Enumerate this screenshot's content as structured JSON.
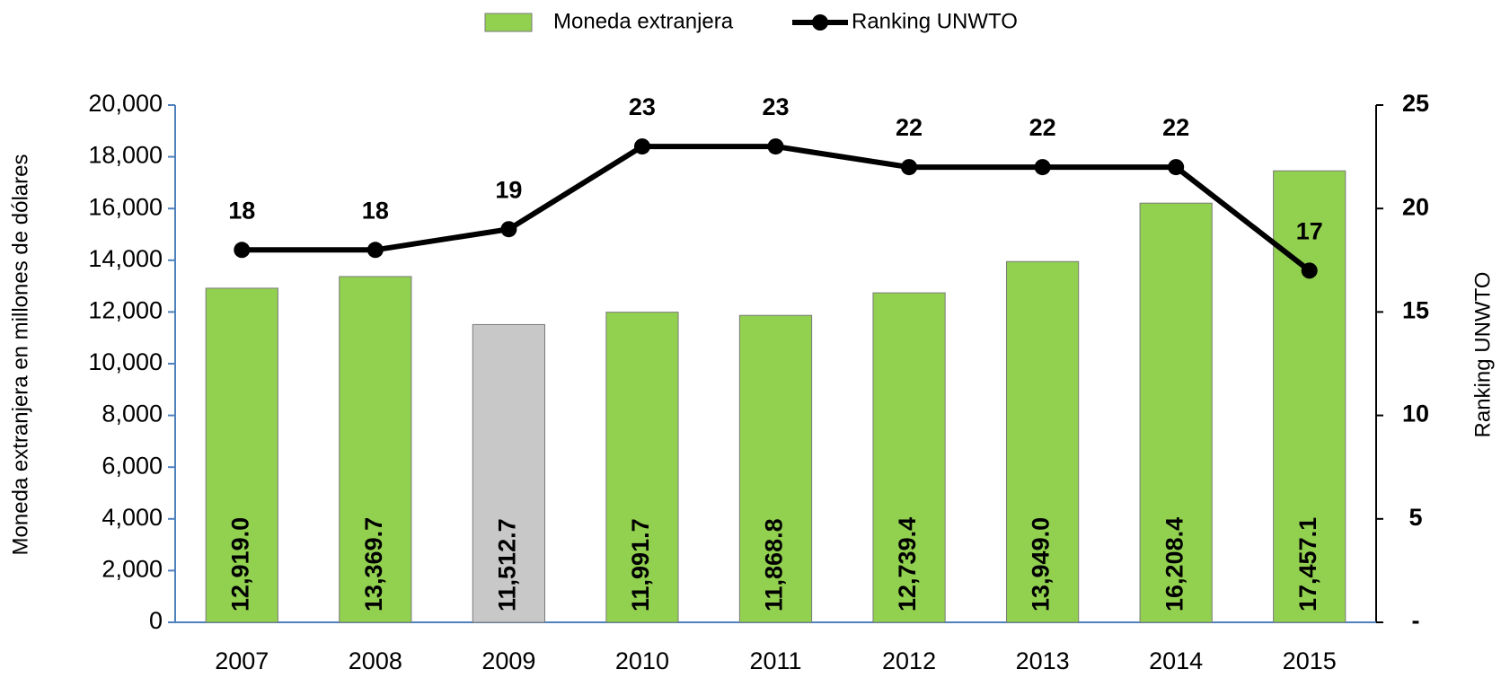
{
  "chart_data": {
    "type": "bar",
    "categories": [
      "2007",
      "2008",
      "2009",
      "2010",
      "2011",
      "2012",
      "2013",
      "2014",
      "2015"
    ],
    "series": [
      {
        "name": "Moneda extranjera",
        "type": "bar",
        "color": "#92d050",
        "colors": [
          "#92d050",
          "#92d050",
          "#c8c8c8",
          "#92d050",
          "#92d050",
          "#92d050",
          "#92d050",
          "#92d050",
          "#92d050"
        ],
        "values": [
          12919.0,
          13369.7,
          11512.7,
          11991.7,
          11868.8,
          12739.4,
          13949.0,
          16208.4,
          17457.1
        ],
        "value_labels": [
          "12,919.0",
          "13,369.7",
          "11,512.7",
          "11,991.7",
          "11,868.8",
          "12,739.4",
          "13,949.0",
          "16,208.4",
          "17,457.1"
        ]
      },
      {
        "name": "Ranking UNWTO",
        "type": "line",
        "axis": "y2",
        "color": "#000000",
        "values": [
          18,
          18,
          19,
          23,
          23,
          22,
          22,
          22,
          17
        ]
      }
    ],
    "ylabel": "Moneda extranjera en millones de dólares",
    "y2label": "Ranking UNWTO",
    "ylim": [
      0,
      20000
    ],
    "yticks": [
      0,
      {
        "value": 2000,
        "label": "2,000"
      },
      {
        "value": 4000,
        "label": "4,000"
      },
      {
        "value": 6000,
        "label": "6,000"
      },
      {
        "value": 8000,
        "label": "8,000"
      },
      {
        "value": 10000,
        "label": "10,000"
      },
      {
        "value": 12000,
        "label": "12,000"
      },
      {
        "value": 14000,
        "label": "14,000"
      },
      {
        "value": 16000,
        "label": "16,000"
      },
      {
        "value": 18000,
        "label": "18,000"
      },
      {
        "value": 20000,
        "label": "20,000"
      }
    ],
    "y2lim": [
      0,
      25
    ],
    "y2ticks": [
      {
        "value": 0,
        "label": "-"
      },
      5,
      10,
      15,
      20,
      25
    ],
    "legend": "top"
  }
}
